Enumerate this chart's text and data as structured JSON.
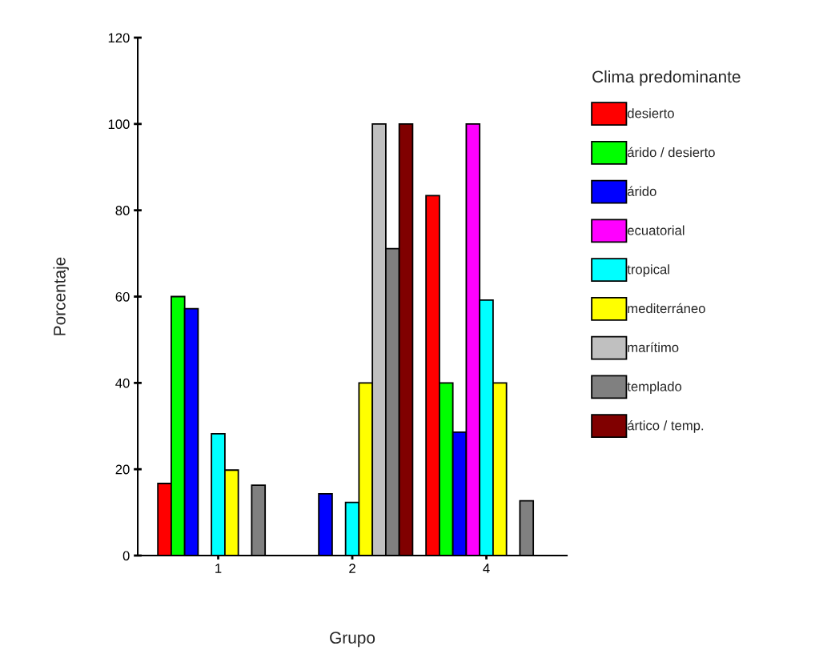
{
  "chart_data": {
    "type": "bar",
    "xlabel": "Grupo",
    "ylabel": "Porcentaje",
    "legend_title": "Clima predominante",
    "categories": [
      "1",
      "2",
      "4"
    ],
    "series": [
      {
        "name": "desierto",
        "color": "#ff0000",
        "values": [
          16.7,
          null,
          83.4
        ]
      },
      {
        "name": "árido / desierto",
        "color": "#00ff00",
        "values": [
          60,
          null,
          40
        ]
      },
      {
        "name": "árido",
        "color": "#0000ff",
        "values": [
          57.2,
          14.3,
          28.6
        ]
      },
      {
        "name": "ecuatorial",
        "color": "#ff00ff",
        "values": [
          null,
          null,
          100
        ]
      },
      {
        "name": "tropical",
        "color": "#00ffff",
        "values": [
          28.2,
          12.3,
          59.2
        ]
      },
      {
        "name": "mediterráneo",
        "color": "#ffff00",
        "values": [
          19.8,
          40,
          40
        ]
      },
      {
        "name": "marítimo",
        "color": "#c0c0c0",
        "values": [
          null,
          100,
          null
        ]
      },
      {
        "name": "templado",
        "color": "#808080",
        "values": [
          16.3,
          71.1,
          12.7
        ]
      },
      {
        "name": "ártico / temp.",
        "color": "#800000",
        "values": [
          null,
          100,
          null
        ]
      }
    ],
    "ylim": [
      0,
      120
    ],
    "yticks": [
      0,
      20,
      40,
      60,
      80,
      100,
      120
    ],
    "grid": false,
    "legend": "right"
  }
}
